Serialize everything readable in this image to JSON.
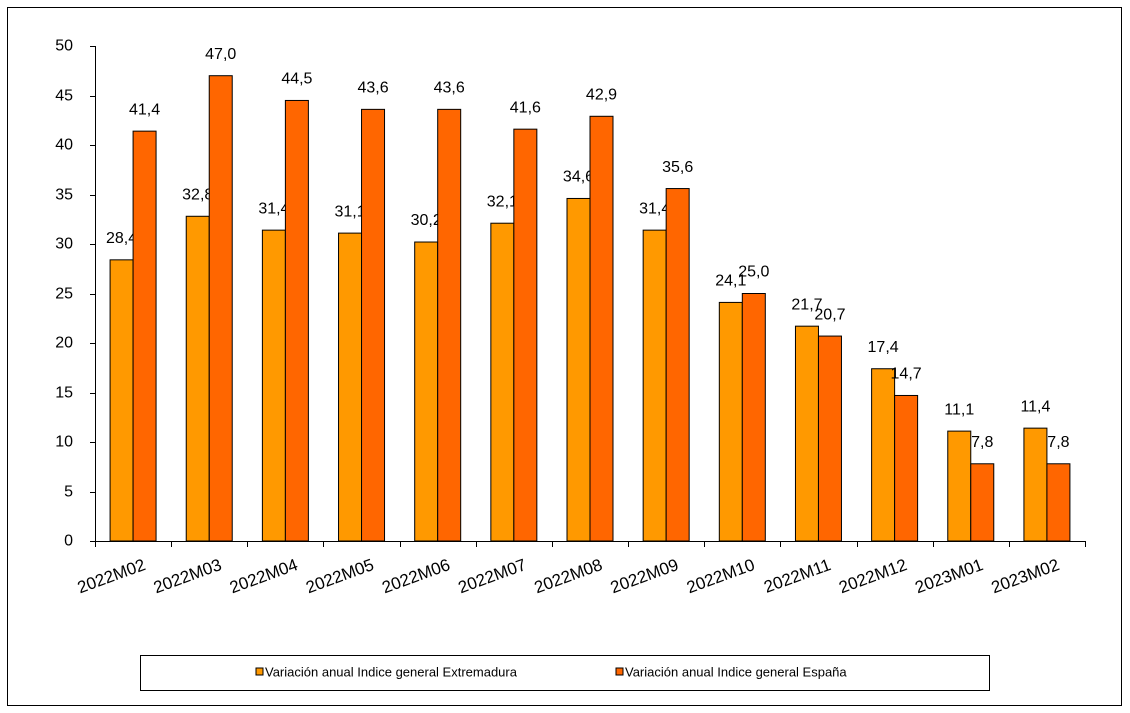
{
  "chart_data": {
    "type": "bar",
    "categories": [
      "2022M02",
      "2022M03",
      "2022M04",
      "2022M05",
      "2022M06",
      "2022M07",
      "2022M08",
      "2022M09",
      "2022M10",
      "2022M11",
      "2022M12",
      "2023M01",
      "2023M02"
    ],
    "series": [
      {
        "name": "Variación anual Indice general Extremadura",
        "color": "#ff9900",
        "values": [
          28.4,
          32.8,
          31.4,
          31.1,
          30.2,
          32.1,
          34.6,
          31.4,
          24.1,
          21.7,
          17.4,
          11.1,
          11.4
        ],
        "value_labels": [
          "28,4",
          "32,8",
          "31,4",
          "31,1",
          "30,2",
          "32,1",
          "34,6",
          "31,4",
          "24,1",
          "21,7",
          "17,4",
          "11,1",
          "11,4"
        ]
      },
      {
        "name": "Variación anual Indice general España",
        "color": "#ff6600",
        "values": [
          41.4,
          47.0,
          44.5,
          43.6,
          43.6,
          41.6,
          42.9,
          35.6,
          25.0,
          20.7,
          14.7,
          7.8,
          7.8
        ],
        "value_labels": [
          "41,4",
          "47,0",
          "44,5",
          "43,6",
          "43,6",
          "41,6",
          "42,9",
          "35,6",
          "25,0",
          "20,7",
          "14,7",
          "7,8",
          "7,8"
        ]
      }
    ],
    "ylim": [
      0,
      50
    ],
    "yticks": [
      0,
      5,
      10,
      15,
      20,
      25,
      30,
      35,
      40,
      45,
      50
    ],
    "grid": false,
    "legend": "bottom"
  }
}
